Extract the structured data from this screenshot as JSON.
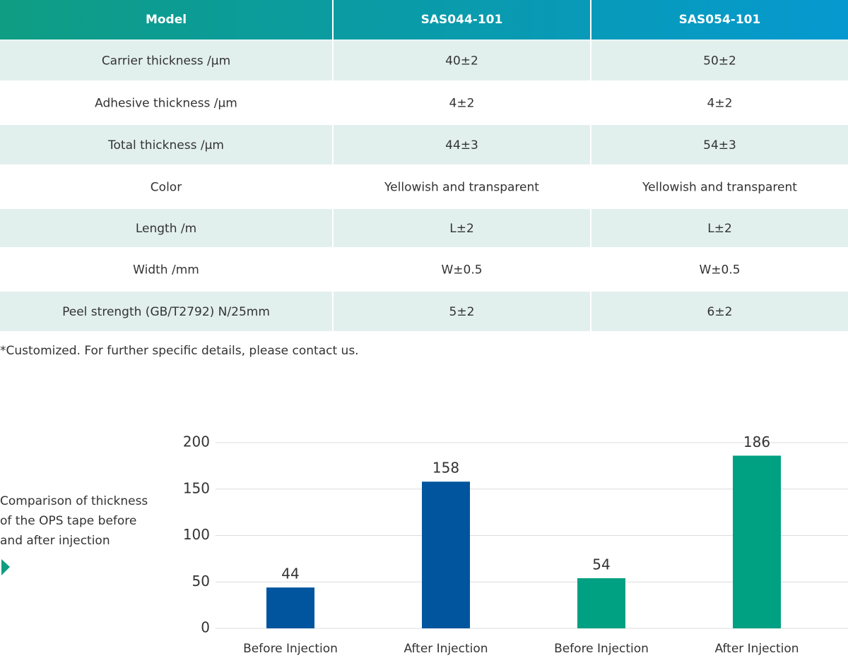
{
  "table": {
    "header": [
      "Model",
      "SAS044-101",
      "SAS054-101"
    ],
    "rows": [
      [
        "Carrier thickness /μm",
        "40±2",
        "50±2"
      ],
      [
        "Adhesive thickness /μm",
        "4±2",
        "4±2"
      ],
      [
        "Total thickness /μm",
        "44±3",
        "54±3"
      ],
      [
        "Color",
        "Yellowish and transparent",
        "Yellowish and transparent"
      ],
      [
        "Length /m",
        "L±2",
        "L±2"
      ],
      [
        "Width /mm",
        "W±0.5",
        "W±0.5"
      ],
      [
        "Peel strength (GB/T2792) N/25mm",
        "5±2",
        "6±2"
      ]
    ],
    "note": "*Customized. For further specific details, please contact us."
  },
  "chart_data": {
    "type": "bar",
    "caption": [
      "Comparison of thickness",
      "of the OPS tape before",
      "and after injection"
    ],
    "categories": [
      "Before Injection",
      "After Injection",
      "Before Injection",
      "After Injection"
    ],
    "values": [
      44,
      158,
      54,
      186
    ],
    "colors": [
      "#00559e",
      "#00559e",
      "#00a082",
      "#00a082"
    ],
    "ylim": [
      0,
      200
    ],
    "yticks": [
      0,
      50,
      100,
      150,
      200
    ],
    "grid": true
  }
}
